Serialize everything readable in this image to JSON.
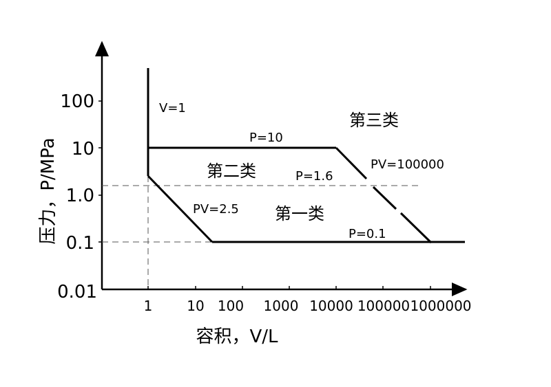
{
  "x_axis": {
    "label": "容积，V/L",
    "ticks": [
      "1",
      "10",
      "100",
      "1000",
      "10000",
      "100000",
      "1000000"
    ]
  },
  "y_axis": {
    "label": "压力，P/MPa",
    "ticks": [
      "0.01",
      "0.1",
      "1.0",
      "10",
      "100"
    ]
  },
  "boundaries": {
    "v1": "V=1",
    "p10": "P=10",
    "p16": "P=1.6",
    "pv25": "PV=2.5",
    "p01": "P=0.1",
    "pv100000": "PV=100000"
  },
  "zones": {
    "class1": "第一类",
    "class2": "第二类",
    "class3": "第三类"
  },
  "colors": {
    "line": "#000000",
    "dash": "#555555"
  }
}
